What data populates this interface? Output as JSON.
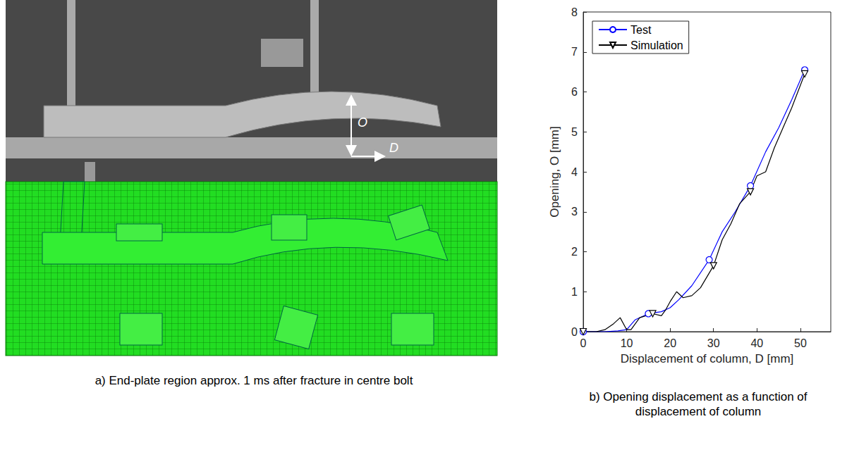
{
  "panel_a": {
    "caption": "a)   End-plate region approx. 1 ms after fracture in centre bolt",
    "labels": [
      "O",
      "D"
    ]
  },
  "chart_data": {
    "type": "line",
    "title": "b)   Opening displacement as a function of displacement of column",
    "x_label": "Displacement of column, D [mm]",
    "y_label": "Opening, O [mm]",
    "xlim": [
      0,
      57
    ],
    "xticks": [
      0,
      10,
      20,
      30,
      40,
      50
    ],
    "ylim": [
      0,
      8
    ],
    "yticks": [
      0,
      1,
      2,
      3,
      4,
      5,
      6,
      7,
      8
    ],
    "grid": false,
    "legend": "upper left",
    "series": [
      {
        "name": "Test",
        "color": "#0000ff",
        "marker": "circle",
        "line_style": "solid",
        "x": [
          0,
          5,
          8,
          10,
          12,
          15,
          18,
          20,
          22,
          25,
          29,
          32,
          35,
          38.5,
          42,
          45,
          48,
          51
        ],
        "values": [
          0,
          0,
          0.02,
          0.05,
          0.3,
          0.45,
          0.5,
          0.6,
          0.8,
          1.15,
          1.8,
          2.5,
          3.0,
          3.65,
          4.5,
          5.1,
          5.8,
          6.55
        ],
        "markers_at": [
          0,
          15,
          29,
          38.5,
          51
        ]
      },
      {
        "name": "Simulation",
        "color": "#000000",
        "marker": "triangle-down",
        "line_style": "solid",
        "x": [
          0,
          3,
          5,
          7,
          8.5,
          10,
          11,
          13,
          16,
          18,
          19,
          20,
          21.5,
          23,
          25,
          27,
          30,
          32,
          34,
          36,
          38.5,
          40,
          42,
          44,
          46,
          48,
          51
        ],
        "values": [
          0,
          0,
          0.05,
          0.2,
          0.35,
          0.05,
          0.05,
          0.35,
          0.45,
          0.4,
          0.55,
          0.75,
          1.0,
          0.85,
          0.9,
          1.1,
          1.65,
          2.3,
          2.7,
          3.2,
          3.5,
          3.9,
          4.0,
          4.6,
          5.1,
          5.6,
          6.45
        ],
        "markers_at": [
          0,
          16,
          30,
          38.5,
          51
        ]
      }
    ]
  }
}
